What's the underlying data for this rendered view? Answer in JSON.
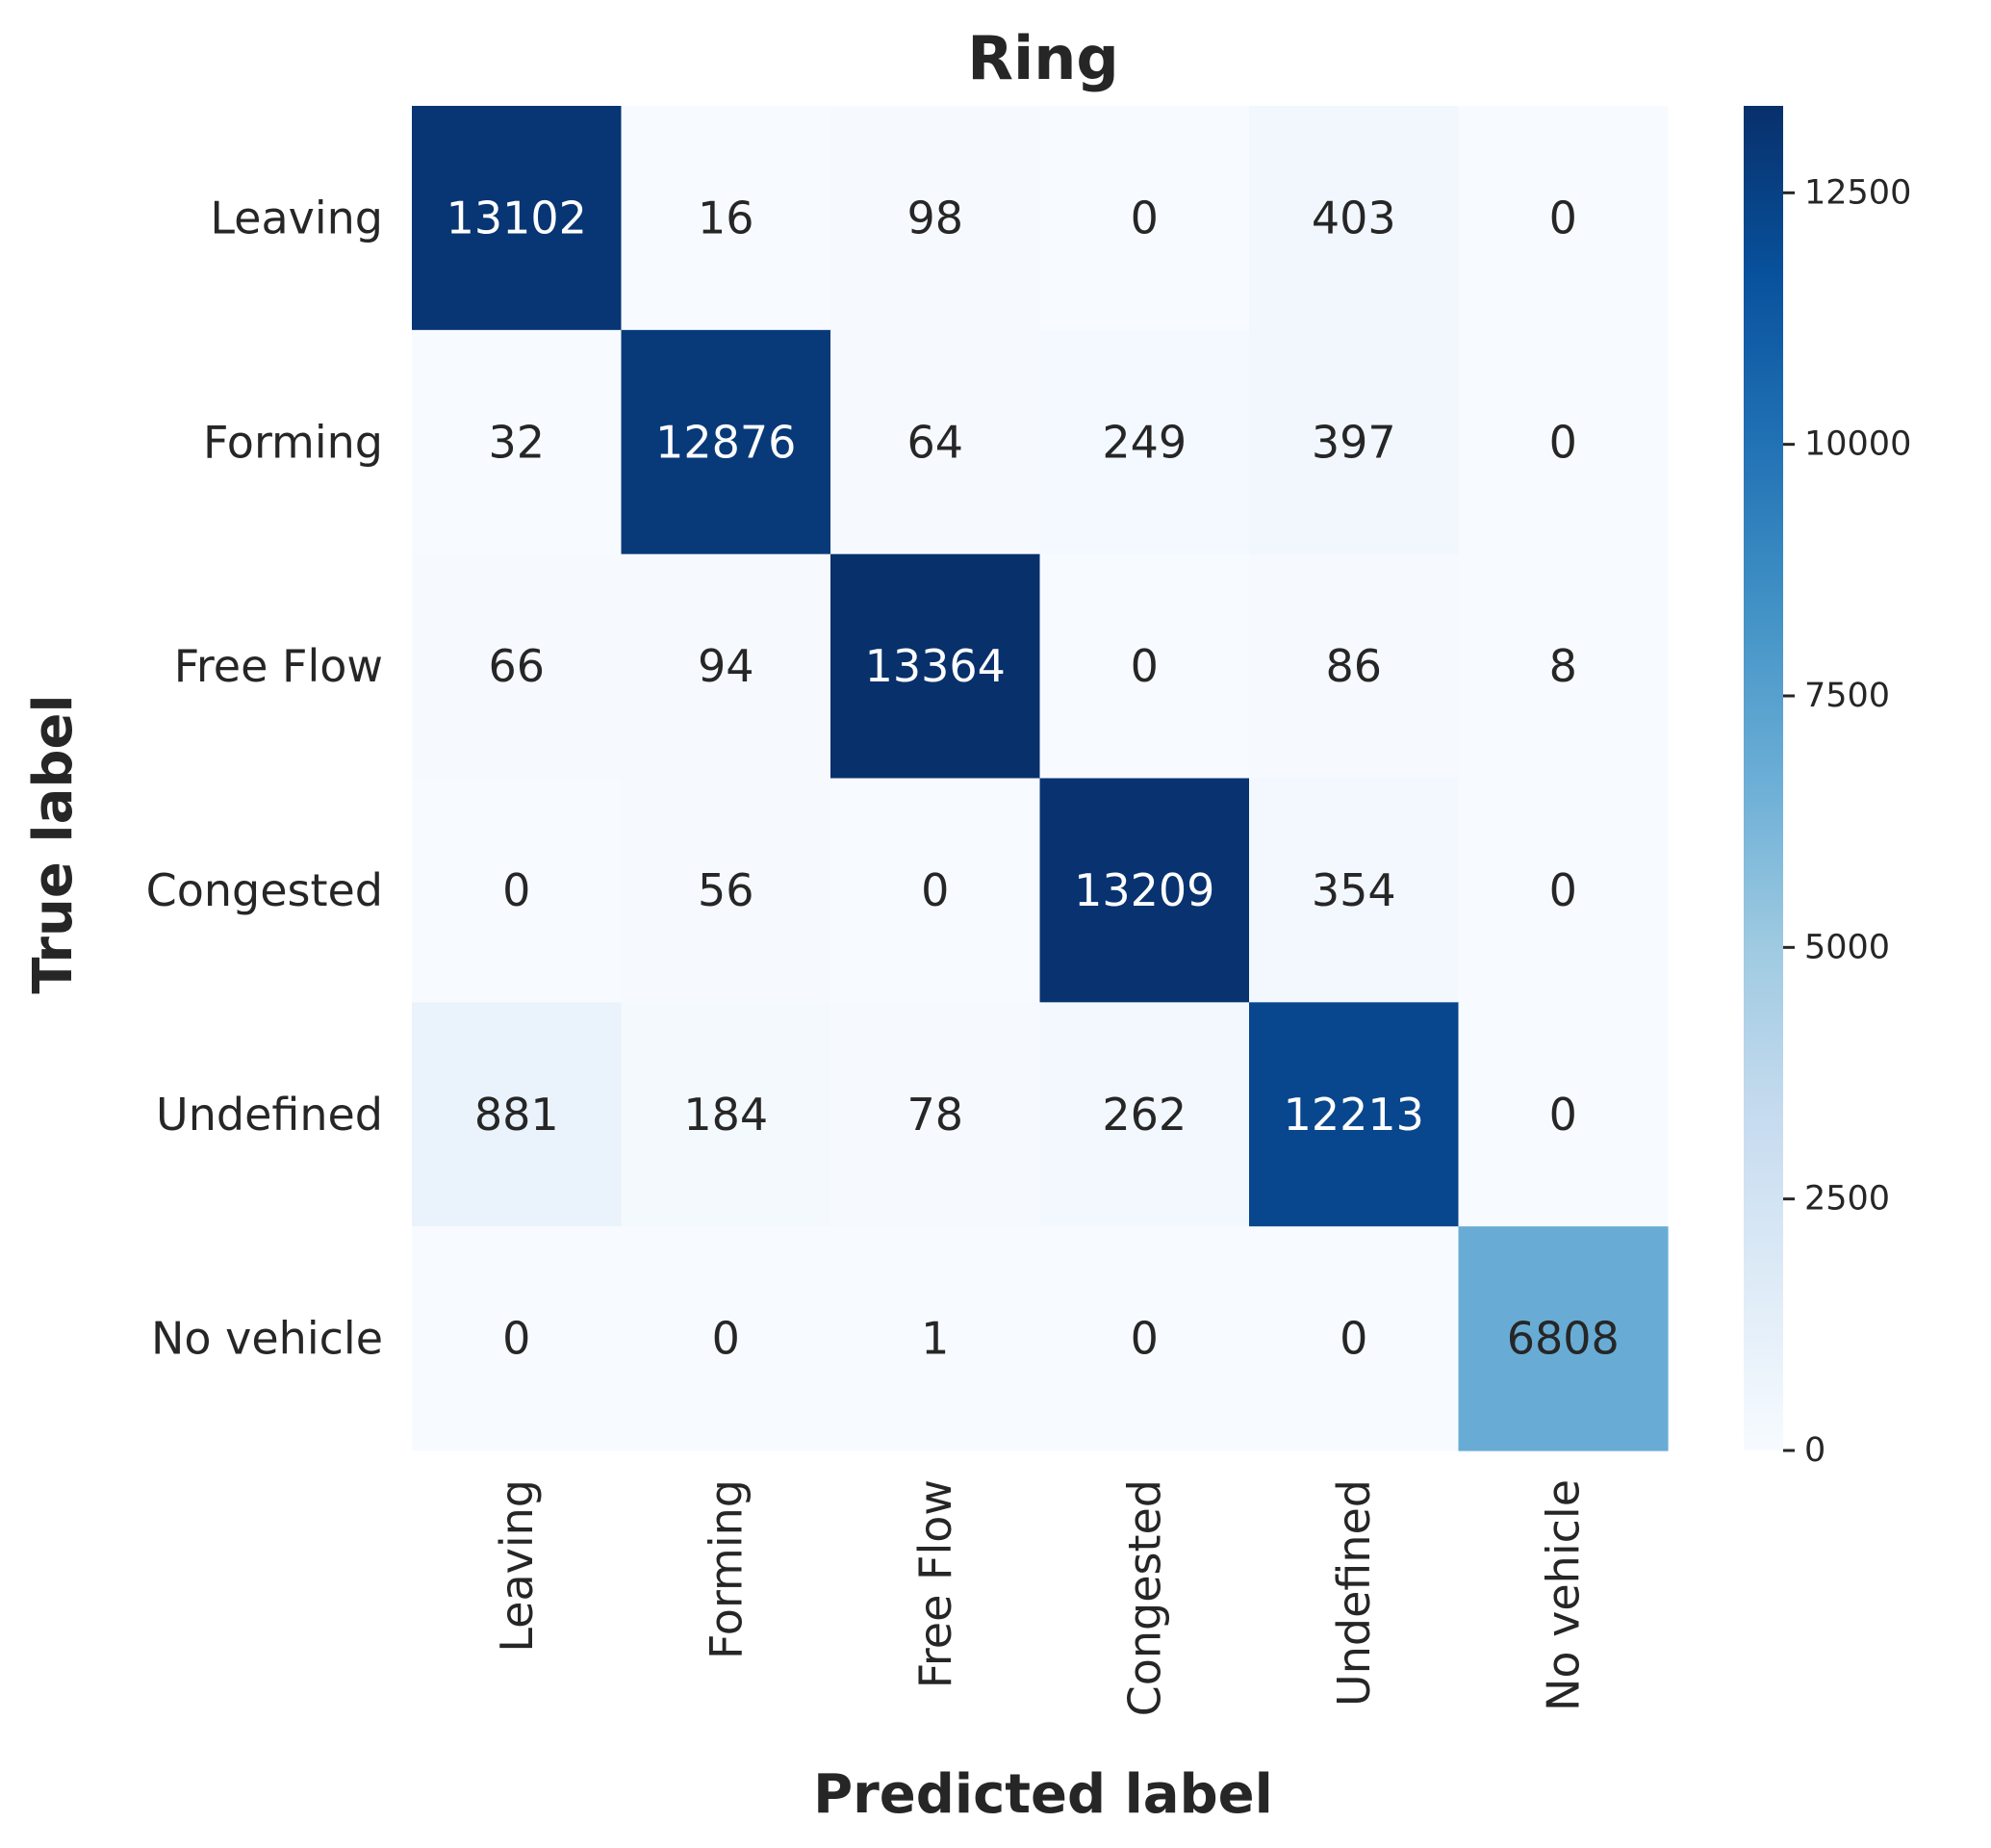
{
  "chart_data": {
    "type": "heatmap",
    "title": "Ring",
    "xlabel": "Predicted label",
    "ylabel": "True label",
    "rows": [
      "Leaving",
      "Forming",
      "Free Flow",
      "Congested",
      "Undefined",
      "No vehicle"
    ],
    "columns": [
      "Leaving",
      "Forming",
      "Free Flow",
      "Congested",
      "Undefined",
      "No vehicle"
    ],
    "values": [
      [
        13102,
        16,
        98,
        0,
        403,
        0
      ],
      [
        32,
        12876,
        64,
        249,
        397,
        0
      ],
      [
        66,
        94,
        13364,
        0,
        86,
        8
      ],
      [
        0,
        56,
        0,
        13209,
        354,
        0
      ],
      [
        881,
        184,
        78,
        262,
        12213,
        0
      ],
      [
        0,
        0,
        1,
        0,
        0,
        6808
      ]
    ],
    "colormap": "Blues",
    "colorbar": {
      "range": [
        0,
        13364
      ],
      "ticks": [
        "0",
        "2500",
        "5000",
        "7500",
        "10000",
        "12500"
      ]
    },
    "grid": false
  }
}
